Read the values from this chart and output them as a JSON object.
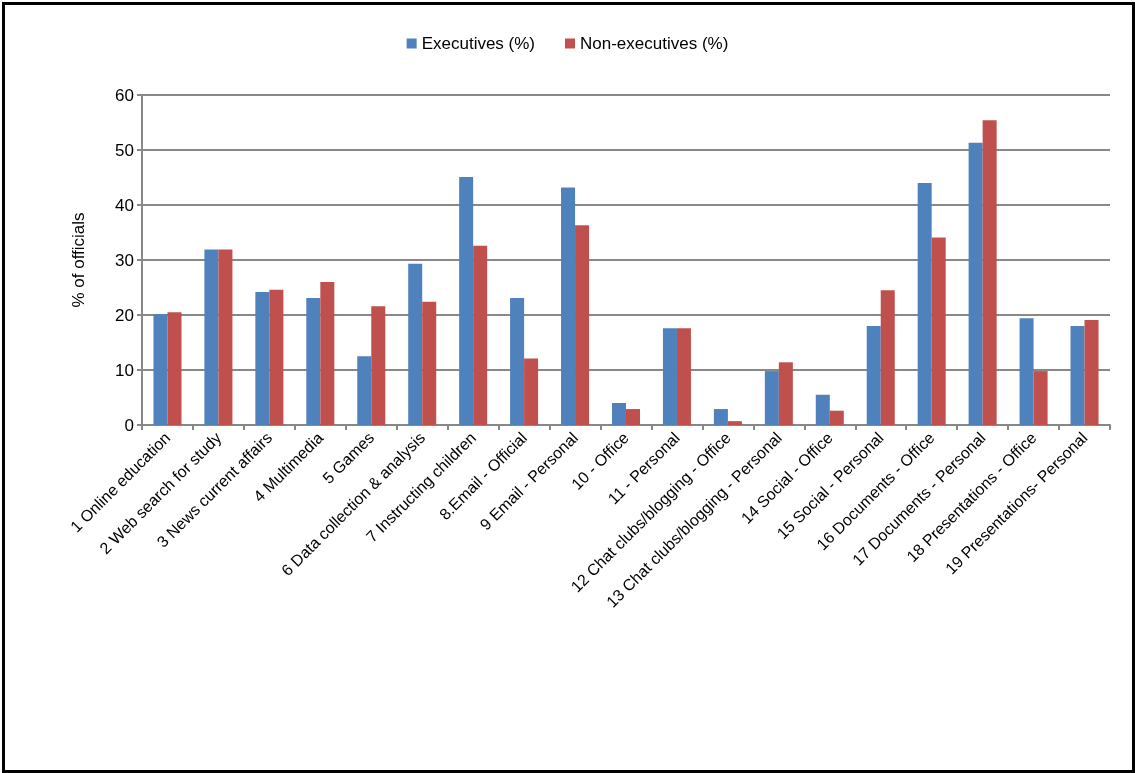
{
  "chart_data": {
    "type": "bar",
    "ylabel": "% of officials",
    "categories": [
      "1 Online education",
      "2 Web search for study",
      "3 News current affairs",
      "4 Multimedia",
      "5 Games",
      "6 Data collection & analysis",
      "7 Instructing children",
      "8.Email - Official",
      "9 Email - Personal",
      "10 - Office",
      "11 - Personal",
      "12 Chat clubs/blogging - Office",
      "13 Chat clubs/blogging - Personal",
      "14 Social - Office",
      "15 Social - Personal",
      "16 Documents - Office",
      "17 Documents - Personal",
      "18 Presentations - Office",
      "19 Presentations- Personal"
    ],
    "series": [
      {
        "name": "Executives (%)",
        "color": "#4f81bd",
        "values": [
          20.2,
          31.9,
          24.2,
          23.1,
          12.5,
          29.3,
          45.1,
          23.1,
          43.2,
          4.0,
          17.6,
          2.9,
          9.8,
          5.5,
          18.0,
          44.0,
          51.3,
          19.4,
          18.0
        ]
      },
      {
        "name": "Non-executives (%)",
        "color": "#c0504d",
        "values": [
          20.5,
          31.9,
          24.6,
          26.0,
          21.6,
          22.4,
          32.6,
          12.1,
          36.3,
          2.9,
          17.6,
          0.7,
          11.4,
          2.6,
          24.5,
          34.1,
          55.4,
          9.8,
          19.1
        ]
      }
    ],
    "ylim": [
      0,
      60
    ],
    "yticks": [
      0,
      10,
      20,
      30,
      40,
      50,
      60
    ],
    "grid": "y",
    "legend": "top"
  }
}
